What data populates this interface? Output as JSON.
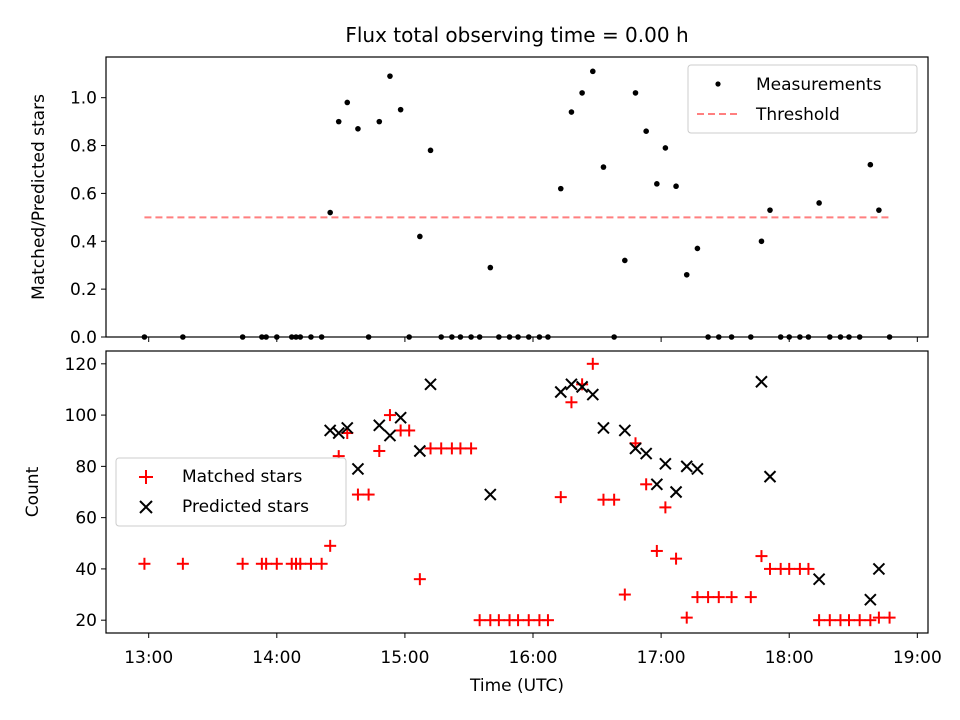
{
  "chart_data": [
    {
      "type": "scatter",
      "title": "Flux total observing time = 0.00 h",
      "xlabel": "",
      "ylabel": "Matched/Predicted stars",
      "xlim": [
        "12:40",
        "19:05"
      ],
      "ylim": [
        0,
        1.17
      ],
      "yticks": [
        0.0,
        0.2,
        0.4,
        0.6,
        0.8,
        1.0
      ],
      "ytick_labels": [
        "0.0",
        "0.2",
        "0.4",
        "0.6",
        "0.8",
        "1.0"
      ],
      "xticks": [
        "13:00",
        "14:00",
        "15:00",
        "16:00",
        "17:00",
        "18:00",
        "19:00"
      ],
      "legend": {
        "position": "top-right",
        "entries": [
          "Measurements",
          "Threshold"
        ]
      },
      "series": [
        {
          "name": "Measurements",
          "color": "#000000",
          "marker": "dot",
          "points": [
            [
              "12:58",
              0
            ],
            [
              "13:16",
              0
            ],
            [
              "13:44",
              0
            ],
            [
              "13:53",
              0
            ],
            [
              "13:55",
              0
            ],
            [
              "14:00",
              0
            ],
            [
              "14:07",
              0
            ],
            [
              "14:09",
              0
            ],
            [
              "14:11",
              0
            ],
            [
              "14:16",
              0
            ],
            [
              "14:21",
              0
            ],
            [
              "14:25",
              0.52
            ],
            [
              "14:29",
              0.9
            ],
            [
              "14:33",
              0.98
            ],
            [
              "14:38",
              0.87
            ],
            [
              "14:43",
              0
            ],
            [
              "14:48",
              0.9
            ],
            [
              "14:53",
              1.09
            ],
            [
              "14:58",
              0.95
            ],
            [
              "15:02",
              0
            ],
            [
              "15:07",
              0.42
            ],
            [
              "15:12",
              0.78
            ],
            [
              "15:17",
              0
            ],
            [
              "15:22",
              0
            ],
            [
              "15:26",
              0
            ],
            [
              "15:31",
              0
            ],
            [
              "15:35",
              0
            ],
            [
              "15:40",
              0.29
            ],
            [
              "15:44",
              0
            ],
            [
              "15:49",
              0
            ],
            [
              "15:53",
              0
            ],
            [
              "15:58",
              0
            ],
            [
              "16:03",
              0
            ],
            [
              "16:07",
              0
            ],
            [
              "16:13",
              0.62
            ],
            [
              "16:18",
              0.94
            ],
            [
              "16:23",
              1.02
            ],
            [
              "16:28",
              1.11
            ],
            [
              "16:33",
              0.71
            ],
            [
              "16:38",
              0
            ],
            [
              "16:43",
              0.32
            ],
            [
              "16:48",
              1.02
            ],
            [
              "16:53",
              0.86
            ],
            [
              "16:58",
              0.64
            ],
            [
              "17:02",
              0.79
            ],
            [
              "17:07",
              0.63
            ],
            [
              "17:12",
              0.26
            ],
            [
              "17:17",
              0.37
            ],
            [
              "17:22",
              0
            ],
            [
              "17:27",
              0
            ],
            [
              "17:33",
              0
            ],
            [
              "17:42",
              0
            ],
            [
              "17:47",
              0.4
            ],
            [
              "17:51",
              0.53
            ],
            [
              "17:56",
              0
            ],
            [
              "18:00",
              0
            ],
            [
              "18:05",
              0
            ],
            [
              "18:09",
              0
            ],
            [
              "18:14",
              0.56
            ],
            [
              "18:19",
              0
            ],
            [
              "18:24",
              0
            ],
            [
              "18:28",
              0
            ],
            [
              "18:33",
              0
            ],
            [
              "18:38",
              0.72
            ],
            [
              "18:42",
              0.53
            ],
            [
              "18:47",
              0
            ]
          ]
        },
        {
          "name": "Threshold",
          "color": "#ff7f7f",
          "style": "dashed",
          "points": [
            [
              "12:58",
              0.5
            ],
            [
              "18:47",
              0.5
            ]
          ]
        }
      ]
    },
    {
      "type": "scatter",
      "title": "",
      "xlabel": "Time (UTC)",
      "ylabel": "Count",
      "xlim": [
        "12:40",
        "19:05"
      ],
      "ylim": [
        15,
        125
      ],
      "yticks": [
        20,
        40,
        60,
        80,
        100,
        120
      ],
      "ytick_labels": [
        "20",
        "40",
        "60",
        "80",
        "100",
        "120"
      ],
      "xticks": [
        "13:00",
        "14:00",
        "15:00",
        "16:00",
        "17:00",
        "18:00",
        "19:00"
      ],
      "xtick_labels": [
        "13:00",
        "14:00",
        "15:00",
        "16:00",
        "17:00",
        "18:00",
        "19:00"
      ],
      "legend": {
        "position": "center-left",
        "entries": [
          "Matched stars",
          "Predicted stars"
        ]
      },
      "series": [
        {
          "name": "Matched stars",
          "color": "#ff0000",
          "marker": "plus",
          "points": [
            [
              "12:58",
              42
            ],
            [
              "13:16",
              42
            ],
            [
              "13:44",
              42
            ],
            [
              "13:53",
              42
            ],
            [
              "13:55",
              42
            ],
            [
              "14:00",
              42
            ],
            [
              "14:07",
              42
            ],
            [
              "14:09",
              42
            ],
            [
              "14:11",
              42
            ],
            [
              "14:16",
              42
            ],
            [
              "14:21",
              42
            ],
            [
              "14:25",
              49
            ],
            [
              "14:29",
              84
            ],
            [
              "14:33",
              93
            ],
            [
              "14:38",
              69
            ],
            [
              "14:43",
              69
            ],
            [
              "14:48",
              86
            ],
            [
              "14:53",
              100
            ],
            [
              "14:58",
              94
            ],
            [
              "15:02",
              94
            ],
            [
              "15:07",
              36
            ],
            [
              "15:12",
              87
            ],
            [
              "15:17",
              87
            ],
            [
              "15:22",
              87
            ],
            [
              "15:26",
              87
            ],
            [
              "15:31",
              87
            ],
            [
              "15:35",
              20
            ],
            [
              "15:40",
              20
            ],
            [
              "15:44",
              20
            ],
            [
              "15:49",
              20
            ],
            [
              "15:53",
              20
            ],
            [
              "15:58",
              20
            ],
            [
              "16:03",
              20
            ],
            [
              "16:07",
              20
            ],
            [
              "16:13",
              68
            ],
            [
              "16:18",
              105
            ],
            [
              "16:23",
              112
            ],
            [
              "16:28",
              120
            ],
            [
              "16:33",
              67
            ],
            [
              "16:38",
              67
            ],
            [
              "16:43",
              30
            ],
            [
              "16:48",
              89
            ],
            [
              "16:53",
              73
            ],
            [
              "16:58",
              47
            ],
            [
              "17:02",
              64
            ],
            [
              "17:07",
              44
            ],
            [
              "17:12",
              21
            ],
            [
              "17:17",
              29
            ],
            [
              "17:22",
              29
            ],
            [
              "17:27",
              29
            ],
            [
              "17:33",
              29
            ],
            [
              "17:42",
              29
            ],
            [
              "17:47",
              45
            ],
            [
              "17:51",
              40
            ],
            [
              "17:56",
              40
            ],
            [
              "18:00",
              40
            ],
            [
              "18:05",
              40
            ],
            [
              "18:09",
              40
            ],
            [
              "18:14",
              20
            ],
            [
              "18:19",
              20
            ],
            [
              "18:24",
              20
            ],
            [
              "18:28",
              20
            ],
            [
              "18:33",
              20
            ],
            [
              "18:38",
              20
            ],
            [
              "18:42",
              21
            ],
            [
              "18:47",
              21
            ]
          ]
        },
        {
          "name": "Predicted stars",
          "color": "#000000",
          "marker": "x",
          "points": [
            [
              "14:25",
              94
            ],
            [
              "14:29",
              93
            ],
            [
              "14:33",
              95
            ],
            [
              "14:38",
              79
            ],
            [
              "14:48",
              96
            ],
            [
              "14:53",
              92
            ],
            [
              "14:58",
              99
            ],
            [
              "15:07",
              86
            ],
            [
              "15:12",
              112
            ],
            [
              "15:40",
              69
            ],
            [
              "16:13",
              109
            ],
            [
              "16:18",
              112
            ],
            [
              "16:23",
              111
            ],
            [
              "16:28",
              108
            ],
            [
              "16:33",
              95
            ],
            [
              "16:43",
              94
            ],
            [
              "16:48",
              87
            ],
            [
              "16:53",
              85
            ],
            [
              "16:58",
              73
            ],
            [
              "17:02",
              81
            ],
            [
              "17:07",
              70
            ],
            [
              "17:12",
              80
            ],
            [
              "17:17",
              79
            ],
            [
              "17:47",
              113
            ],
            [
              "17:51",
              76
            ],
            [
              "18:14",
              36
            ],
            [
              "18:38",
              28
            ],
            [
              "18:42",
              40
            ]
          ]
        }
      ]
    }
  ]
}
